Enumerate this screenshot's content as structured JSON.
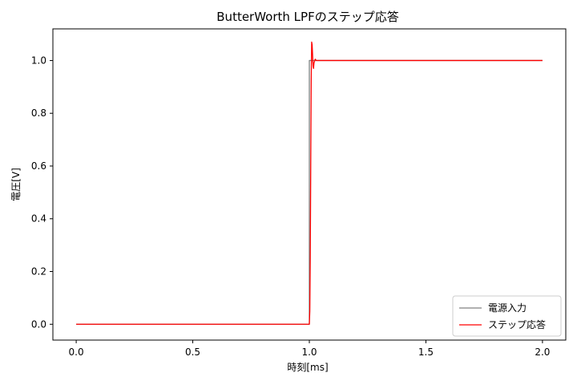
{
  "chart_data": {
    "type": "line",
    "title": "ButterWorth LPFのステップ応答",
    "xlabel": "時刻[ms]",
    "ylabel": "電圧[V]",
    "xlim": [
      -0.1,
      2.1
    ],
    "ylim": [
      -0.06,
      1.12
    ],
    "xticks": [
      0.0,
      0.5,
      1.0,
      1.5,
      2.0
    ],
    "xtick_labels": [
      "0.0",
      "0.5",
      "1.0",
      "1.5",
      "2.0"
    ],
    "yticks": [
      0.0,
      0.2,
      0.4,
      0.6,
      0.8,
      1.0
    ],
    "ytick_labels": [
      "0.0",
      "0.2",
      "0.4",
      "0.6",
      "0.8",
      "1.0"
    ],
    "grid": false,
    "legend_position": "lower right",
    "series": [
      {
        "name": "電源入力",
        "color": "#808080",
        "x": [
          0.0,
          1.0,
          1.0,
          2.0
        ],
        "y": [
          0.0,
          0.0,
          1.0,
          1.0
        ]
      },
      {
        "name": "ステップ応答",
        "color": "#ff0000",
        "x": [
          0.0,
          1.0,
          1.002,
          1.004,
          1.006,
          1.008,
          1.01,
          1.012,
          1.014,
          1.016,
          1.018,
          1.02,
          1.025,
          1.03,
          2.0
        ],
        "y": [
          0.0,
          0.0,
          0.05,
          0.25,
          0.6,
          0.92,
          1.07,
          1.06,
          1.02,
          0.98,
          0.97,
          0.99,
          1.005,
          1.0,
          1.0
        ]
      }
    ]
  }
}
